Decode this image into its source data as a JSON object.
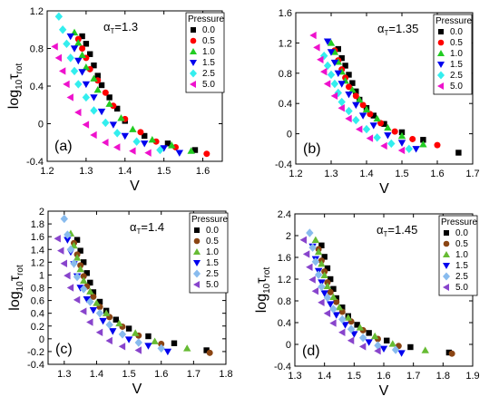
{
  "legend_title": "Pressure",
  "chart_data": [
    {
      "type": "scatter",
      "panel_label": "(a)",
      "annotation": "αT=1.3",
      "annotation_main": "α",
      "annotation_sub": "T",
      "annotation_value": "=1.3",
      "xlabel": "V",
      "ylabel_main": "log",
      "ylabel_sub1": "10",
      "ylabel_tau": "τ",
      "ylabel_sub2": "rot",
      "xlim": [
        1.2,
        1.65
      ],
      "ylim": [
        -0.4,
        1.2
      ],
      "xticks": [
        "1.2",
        "1.3",
        "1.4",
        "1.5",
        "1.6"
      ],
      "yticks": [
        "-0.4",
        "0",
        "0.4",
        "0.8",
        "1.2"
      ],
      "legend_placement": "top-right",
      "series": [
        {
          "name": "0.0",
          "color": "#000000",
          "marker": "square",
          "x": [
            1.29,
            1.3,
            1.31,
            1.32,
            1.33,
            1.34,
            1.36,
            1.38,
            1.4,
            1.45,
            1.51,
            1.58
          ],
          "y": [
            0.93,
            0.85,
            0.74,
            0.62,
            0.51,
            0.41,
            0.28,
            0.16,
            0.03,
            -0.13,
            -0.21,
            -0.28
          ]
        },
        {
          "name": "0.5",
          "color": "#ff0000",
          "marker": "circle",
          "x": [
            1.28,
            1.29,
            1.3,
            1.31,
            1.33,
            1.35,
            1.37,
            1.4,
            1.44,
            1.48,
            1.53,
            1.61
          ],
          "y": [
            0.9,
            0.8,
            0.7,
            0.58,
            0.46,
            0.33,
            0.19,
            0.05,
            -0.09,
            -0.19,
            -0.25,
            -0.32
          ]
        },
        {
          "name": "1.0",
          "color": "#22cc22",
          "marker": "triangle-up",
          "x": [
            1.27,
            1.28,
            1.29,
            1.3,
            1.32,
            1.33,
            1.36,
            1.39,
            1.42,
            1.47,
            1.52,
            1.57
          ],
          "y": [
            0.97,
            0.86,
            0.73,
            0.6,
            0.48,
            0.36,
            0.21,
            0.06,
            -0.06,
            -0.17,
            -0.23,
            -0.29
          ]
        },
        {
          "name": "1.5",
          "color": "#0000ee",
          "marker": "triangle-down",
          "x": [
            1.26,
            1.27,
            1.28,
            1.29,
            1.3,
            1.32,
            1.34,
            1.37,
            1.4,
            1.45,
            1.5,
            1.54
          ],
          "y": [
            0.93,
            0.8,
            0.67,
            0.55,
            0.42,
            0.28,
            0.13,
            -0.01,
            -0.13,
            -0.21,
            -0.26,
            -0.31
          ]
        },
        {
          "name": "2.5",
          "color": "#33eeee",
          "marker": "diamond",
          "x": [
            1.23,
            1.24,
            1.25,
            1.26,
            1.27,
            1.28,
            1.3,
            1.32,
            1.35,
            1.38,
            1.43,
            1.49
          ],
          "y": [
            1.14,
            1.0,
            0.85,
            0.7,
            0.56,
            0.42,
            0.28,
            0.14,
            0.01,
            -0.1,
            -0.19,
            -0.28
          ]
        },
        {
          "name": "5.0",
          "color": "#ee11cc",
          "marker": "triangle-left",
          "x": [
            1.22,
            1.23,
            1.24,
            1.25,
            1.26,
            1.28,
            1.3,
            1.32,
            1.35,
            1.38,
            1.42,
            1.46
          ],
          "y": [
            0.82,
            0.7,
            0.56,
            0.42,
            0.28,
            0.12,
            -0.01,
            -0.12,
            -0.2,
            -0.25,
            -0.29,
            -0.31
          ]
        }
      ]
    },
    {
      "type": "scatter",
      "panel_label": "(b)",
      "annotation": "αT=1.35",
      "annotation_main": "α",
      "annotation_sub": "T",
      "annotation_value": "=1.35",
      "xlabel": "V",
      "ylabel_main": "",
      "ylabel_sub1": "",
      "ylabel_tau": "",
      "ylabel_sub2": "",
      "xlim": [
        1.2,
        1.7
      ],
      "ylim": [
        -0.4,
        1.6
      ],
      "xticks": [
        "1.2",
        "1.3",
        "1.4",
        "1.5",
        "1.6",
        "1.7"
      ],
      "yticks": [
        "-0.4",
        "0",
        "0.4",
        "0.8",
        "1.2",
        "1.6"
      ],
      "legend_placement": "top-right",
      "series": [
        {
          "name": "0.0",
          "color": "#000000",
          "marker": "square",
          "x": [
            1.32,
            1.33,
            1.34,
            1.35,
            1.36,
            1.37,
            1.38,
            1.4,
            1.42,
            1.45,
            1.5,
            1.56,
            1.66
          ],
          "y": [
            1.12,
            1.0,
            0.9,
            0.78,
            0.67,
            0.56,
            0.45,
            0.34,
            0.24,
            0.13,
            0.02,
            -0.08,
            -0.25
          ]
        },
        {
          "name": "0.5",
          "color": "#ff0000",
          "marker": "circle",
          "x": [
            1.31,
            1.32,
            1.33,
            1.34,
            1.35,
            1.37,
            1.39,
            1.41,
            1.44,
            1.48,
            1.53,
            1.6
          ],
          "y": [
            1.1,
            0.97,
            0.85,
            0.74,
            0.62,
            0.5,
            0.38,
            0.26,
            0.14,
            0.03,
            -0.07,
            -0.15
          ]
        },
        {
          "name": "1.0",
          "color": "#22cc22",
          "marker": "triangle-up",
          "x": [
            1.3,
            1.31,
            1.32,
            1.33,
            1.34,
            1.36,
            1.38,
            1.4,
            1.43,
            1.46,
            1.5,
            1.56
          ],
          "y": [
            1.2,
            1.08,
            0.95,
            0.82,
            0.7,
            0.58,
            0.45,
            0.32,
            0.2,
            0.08,
            -0.03,
            -0.14
          ]
        },
        {
          "name": "1.5",
          "color": "#0000ee",
          "marker": "triangle-down",
          "x": [
            1.29,
            1.3,
            1.31,
            1.32,
            1.33,
            1.35,
            1.37,
            1.39,
            1.42,
            1.46,
            1.5,
            1.54
          ],
          "y": [
            1.22,
            1.08,
            0.94,
            0.8,
            0.66,
            0.52,
            0.38,
            0.24,
            0.11,
            -0.02,
            -0.12,
            -0.2
          ]
        },
        {
          "name": "2.5",
          "color": "#33eeee",
          "marker": "diamond",
          "x": [
            1.28,
            1.29,
            1.3,
            1.31,
            1.32,
            1.33,
            1.35,
            1.37,
            1.4,
            1.43,
            1.47,
            1.52
          ],
          "y": [
            1.03,
            0.9,
            0.78,
            0.66,
            0.54,
            0.42,
            0.3,
            0.18,
            0.06,
            -0.05,
            -0.13,
            -0.2
          ]
        },
        {
          "name": "5.0",
          "color": "#ee11cc",
          "marker": "triangle-left",
          "x": [
            1.25,
            1.26,
            1.27,
            1.28,
            1.29,
            1.31,
            1.33,
            1.35,
            1.38,
            1.41,
            1.45,
            1.5
          ],
          "y": [
            1.3,
            1.14,
            0.98,
            0.82,
            0.66,
            0.5,
            0.34,
            0.2,
            0.06,
            -0.06,
            -0.16,
            -0.22
          ]
        }
      ]
    },
    {
      "type": "scatter",
      "panel_label": "(c)",
      "annotation": "αT=1.4",
      "annotation_main": "α",
      "annotation_sub": "T",
      "annotation_value": "=1.4",
      "xlabel": "V",
      "ylabel_main": "log",
      "ylabel_sub1": "10",
      "ylabel_tau": "τ",
      "ylabel_sub2": "rot",
      "xlim": [
        1.25,
        1.8
      ],
      "ylim": [
        -0.4,
        2.0
      ],
      "xticks": [
        "1.3",
        "1.4",
        "1.5",
        "1.6",
        "1.7",
        "1.8"
      ],
      "yticks": [
        "-0.4",
        "-0.2",
        "0",
        "0.2",
        "0.4",
        "0.6",
        "0.8",
        "1",
        "1.2",
        "1.4",
        "1.6",
        "1.8",
        "2"
      ],
      "legend_placement": "top-right",
      "series": [
        {
          "name": "0.0",
          "color": "#000000",
          "marker": "square",
          "x": [
            1.34,
            1.35,
            1.36,
            1.37,
            1.38,
            1.39,
            1.41,
            1.43,
            1.46,
            1.5,
            1.56,
            1.64,
            1.74
          ],
          "y": [
            1.55,
            1.38,
            1.2,
            1.03,
            0.88,
            0.73,
            0.58,
            0.44,
            0.3,
            0.16,
            0.04,
            -0.07,
            -0.18
          ]
        },
        {
          "name": "0.5",
          "color": "#8b4513",
          "marker": "circle",
          "x": [
            1.33,
            1.34,
            1.35,
            1.36,
            1.37,
            1.39,
            1.41,
            1.44,
            1.48,
            1.53,
            1.6,
            1.75
          ],
          "y": [
            1.5,
            1.32,
            1.15,
            0.98,
            0.82,
            0.66,
            0.5,
            0.34,
            0.19,
            0.05,
            -0.08,
            -0.22
          ]
        },
        {
          "name": "1.0",
          "color": "#66bb33",
          "marker": "triangle-up",
          "x": [
            1.32,
            1.33,
            1.34,
            1.35,
            1.36,
            1.38,
            1.4,
            1.43,
            1.47,
            1.52,
            1.58,
            1.68
          ],
          "y": [
            1.65,
            1.46,
            1.27,
            1.09,
            0.91,
            0.74,
            0.56,
            0.4,
            0.24,
            0.09,
            -0.04,
            -0.15
          ]
        },
        {
          "name": "1.5",
          "color": "#0000ee",
          "marker": "triangle-down",
          "x": [
            1.31,
            1.32,
            1.33,
            1.34,
            1.35,
            1.37,
            1.39,
            1.42,
            1.45,
            1.5,
            1.56,
            1.62
          ],
          "y": [
            1.55,
            1.36,
            1.17,
            0.98,
            0.8,
            0.62,
            0.45,
            0.28,
            0.12,
            -0.01,
            -0.11,
            -0.2
          ]
        },
        {
          "name": "2.5",
          "color": "#88bbee",
          "marker": "diamond",
          "x": [
            1.3,
            1.31,
            1.32,
            1.33,
            1.34,
            1.36,
            1.38,
            1.41,
            1.44,
            1.48,
            1.53,
            1.6
          ],
          "y": [
            1.88,
            1.63,
            1.4,
            1.18,
            0.97,
            0.78,
            0.58,
            0.4,
            0.22,
            0.07,
            -0.06,
            -0.15
          ]
        },
        {
          "name": "5.0",
          "color": "#8844cc",
          "marker": "triangle-left",
          "x": [
            1.28,
            1.29,
            1.3,
            1.31,
            1.32,
            1.34,
            1.36,
            1.38,
            1.41,
            1.44,
            1.48,
            1.53
          ],
          "y": [
            1.57,
            1.38,
            1.18,
            0.99,
            0.8,
            0.61,
            0.43,
            0.26,
            0.1,
            -0.03,
            -0.12,
            -0.18
          ]
        }
      ]
    },
    {
      "type": "scatter",
      "panel_label": "(d)",
      "annotation": "αT=1.45",
      "annotation_main": "α",
      "annotation_sub": "T",
      "annotation_value": "=1.45",
      "xlabel": "V",
      "ylabel_main": "log",
      "ylabel_sub1": "10",
      "ylabel_tau": "τ",
      "ylabel_sub2": "rot",
      "xlim": [
        1.3,
        1.9
      ],
      "ylim": [
        -0.4,
        2.4
      ],
      "xticks": [
        "1.3",
        "1.4",
        "1.5",
        "1.6",
        "1.7",
        "1.8",
        "1.9"
      ],
      "yticks": [
        "-0.4",
        "0",
        "0.4",
        "0.8",
        "1.2",
        "1.6",
        "2",
        "2.4"
      ],
      "legend_placement": "top-right",
      "series": [
        {
          "name": "0.0",
          "color": "#000000",
          "marker": "square",
          "x": [
            1.39,
            1.4,
            1.41,
            1.42,
            1.43,
            1.44,
            1.46,
            1.48,
            1.51,
            1.55,
            1.61,
            1.69,
            1.82
          ],
          "y": [
            1.82,
            1.61,
            1.4,
            1.2,
            1.02,
            0.85,
            0.68,
            0.52,
            0.36,
            0.21,
            0.07,
            -0.05,
            -0.15
          ]
        },
        {
          "name": "0.5",
          "color": "#8b4513",
          "marker": "circle",
          "x": [
            1.38,
            1.39,
            1.4,
            1.41,
            1.42,
            1.44,
            1.46,
            1.49,
            1.53,
            1.58,
            1.65,
            1.83
          ],
          "y": [
            1.75,
            1.54,
            1.34,
            1.14,
            0.96,
            0.78,
            0.6,
            0.42,
            0.26,
            0.1,
            -0.03,
            -0.17
          ]
        },
        {
          "name": "1.0",
          "color": "#66bb33",
          "marker": "triangle-up",
          "x": [
            1.37,
            1.38,
            1.39,
            1.4,
            1.41,
            1.43,
            1.45,
            1.48,
            1.52,
            1.57,
            1.63,
            1.74
          ],
          "y": [
            1.92,
            1.7,
            1.48,
            1.27,
            1.07,
            0.87,
            0.68,
            0.49,
            0.31,
            0.15,
            0.01,
            -0.11
          ]
        },
        {
          "name": "1.5",
          "color": "#0000ee",
          "marker": "triangle-down",
          "x": [
            1.36,
            1.37,
            1.38,
            1.39,
            1.4,
            1.42,
            1.44,
            1.47,
            1.5,
            1.55,
            1.6,
            1.66
          ],
          "y": [
            1.8,
            1.57,
            1.35,
            1.14,
            0.94,
            0.74,
            0.54,
            0.36,
            0.19,
            0.04,
            -0.08,
            -0.16
          ]
        },
        {
          "name": "2.5",
          "color": "#88bbee",
          "marker": "diamond",
          "x": [
            1.35,
            1.36,
            1.37,
            1.38,
            1.39,
            1.41,
            1.43,
            1.46,
            1.49,
            1.53,
            1.58,
            1.64
          ],
          "y": [
            2.05,
            1.78,
            1.52,
            1.28,
            1.06,
            0.86,
            0.65,
            0.46,
            0.28,
            0.12,
            -0.02,
            -0.1
          ]
        },
        {
          "name": "5.0",
          "color": "#8844cc",
          "marker": "triangle-left",
          "x": [
            1.33,
            1.34,
            1.35,
            1.36,
            1.37,
            1.39,
            1.41,
            1.43,
            1.46,
            1.49,
            1.53,
            1.58
          ],
          "y": [
            1.92,
            1.66,
            1.42,
            1.19,
            0.98,
            0.77,
            0.57,
            0.39,
            0.22,
            0.07,
            -0.04,
            -0.12
          ]
        }
      ]
    }
  ]
}
